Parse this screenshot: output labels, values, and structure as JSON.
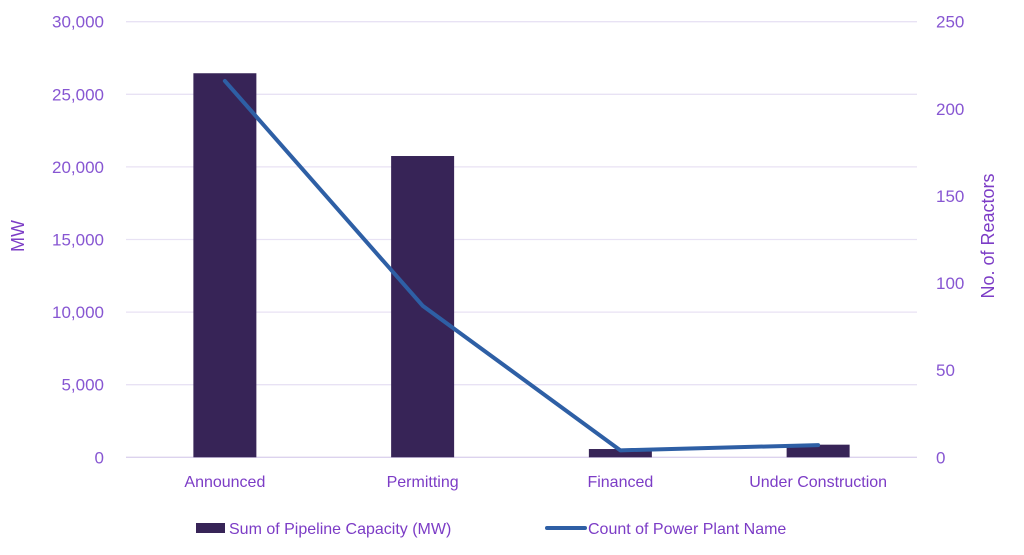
{
  "chart_data": {
    "type": "combo-bar-line",
    "title": "",
    "categories": [
      "Announced",
      "Permitting",
      "Financed",
      "Under Construction"
    ],
    "series": [
      {
        "name": "Sum of Pipeline Capacity (MW)",
        "type": "bar",
        "axis": "left",
        "color": "#372457",
        "values": [
          26450,
          20750,
          570,
          870
        ]
      },
      {
        "name": "Count of Power Plant Name",
        "type": "line",
        "axis": "right",
        "color": "#2E5FA5",
        "values": [
          216,
          87,
          4,
          7
        ]
      }
    ],
    "left_axis": {
      "label": "MW",
      "min": 0,
      "max": 30000,
      "tick_step": 5000,
      "tick_labels": [
        "0",
        "5,000",
        "10,000",
        "15,000",
        "20,000",
        "25,000",
        "30,000"
      ]
    },
    "right_axis": {
      "label": "No. of Reactors",
      "min": 0,
      "max": 250,
      "tick_step": 50,
      "tick_labels": [
        "0",
        "50",
        "100",
        "150",
        "200",
        "250"
      ]
    },
    "legend": {
      "position": "bottom",
      "items": [
        "Sum of Pipeline Capacity (MW)",
        "Count of Power Plant Name"
      ]
    },
    "grid": true,
    "colors": {
      "background": "#FFFFFF",
      "tick_text": "#8756D2",
      "label_text": "#7C3CC6",
      "gridline": "#E8E2F4",
      "axis_line": "#DCD3EE",
      "bar": "#372457",
      "line": "#2E5FA5"
    }
  }
}
